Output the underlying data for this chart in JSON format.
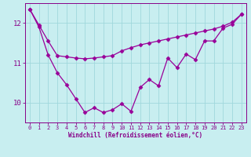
{
  "xlabel": "Windchill (Refroidissement éolien,°C)",
  "background_color": "#c8eef0",
  "line_color": "#990099",
  "x": [
    0,
    1,
    2,
    3,
    4,
    5,
    6,
    7,
    8,
    9,
    10,
    11,
    12,
    13,
    14,
    15,
    16,
    17,
    18,
    19,
    20,
    21,
    22,
    23
  ],
  "y_spiky": [
    12.35,
    11.9,
    11.2,
    10.75,
    10.45,
    10.1,
    9.75,
    9.87,
    9.75,
    9.82,
    9.97,
    9.78,
    10.38,
    10.58,
    10.42,
    11.12,
    10.88,
    11.22,
    11.08,
    11.55,
    11.55,
    11.87,
    11.97,
    12.22
  ],
  "y_trend": [
    12.35,
    11.95,
    11.55,
    11.18,
    11.15,
    11.12,
    11.1,
    11.12,
    11.15,
    11.18,
    11.3,
    11.38,
    11.45,
    11.5,
    11.55,
    11.6,
    11.65,
    11.7,
    11.75,
    11.8,
    11.85,
    11.92,
    12.02,
    12.22
  ],
  "ylim": [
    9.5,
    12.5
  ],
  "xlim": [
    -0.5,
    23.5
  ],
  "yticks": [
    10,
    11,
    12
  ],
  "xticks": [
    0,
    1,
    2,
    3,
    4,
    5,
    6,
    7,
    8,
    9,
    10,
    11,
    12,
    13,
    14,
    15,
    16,
    17,
    18,
    19,
    20,
    21,
    22,
    23
  ],
  "grid_color": "#a0d8dc",
  "tick_color": "#880088",
  "spine_color": "#880088",
  "markersize": 2.5
}
